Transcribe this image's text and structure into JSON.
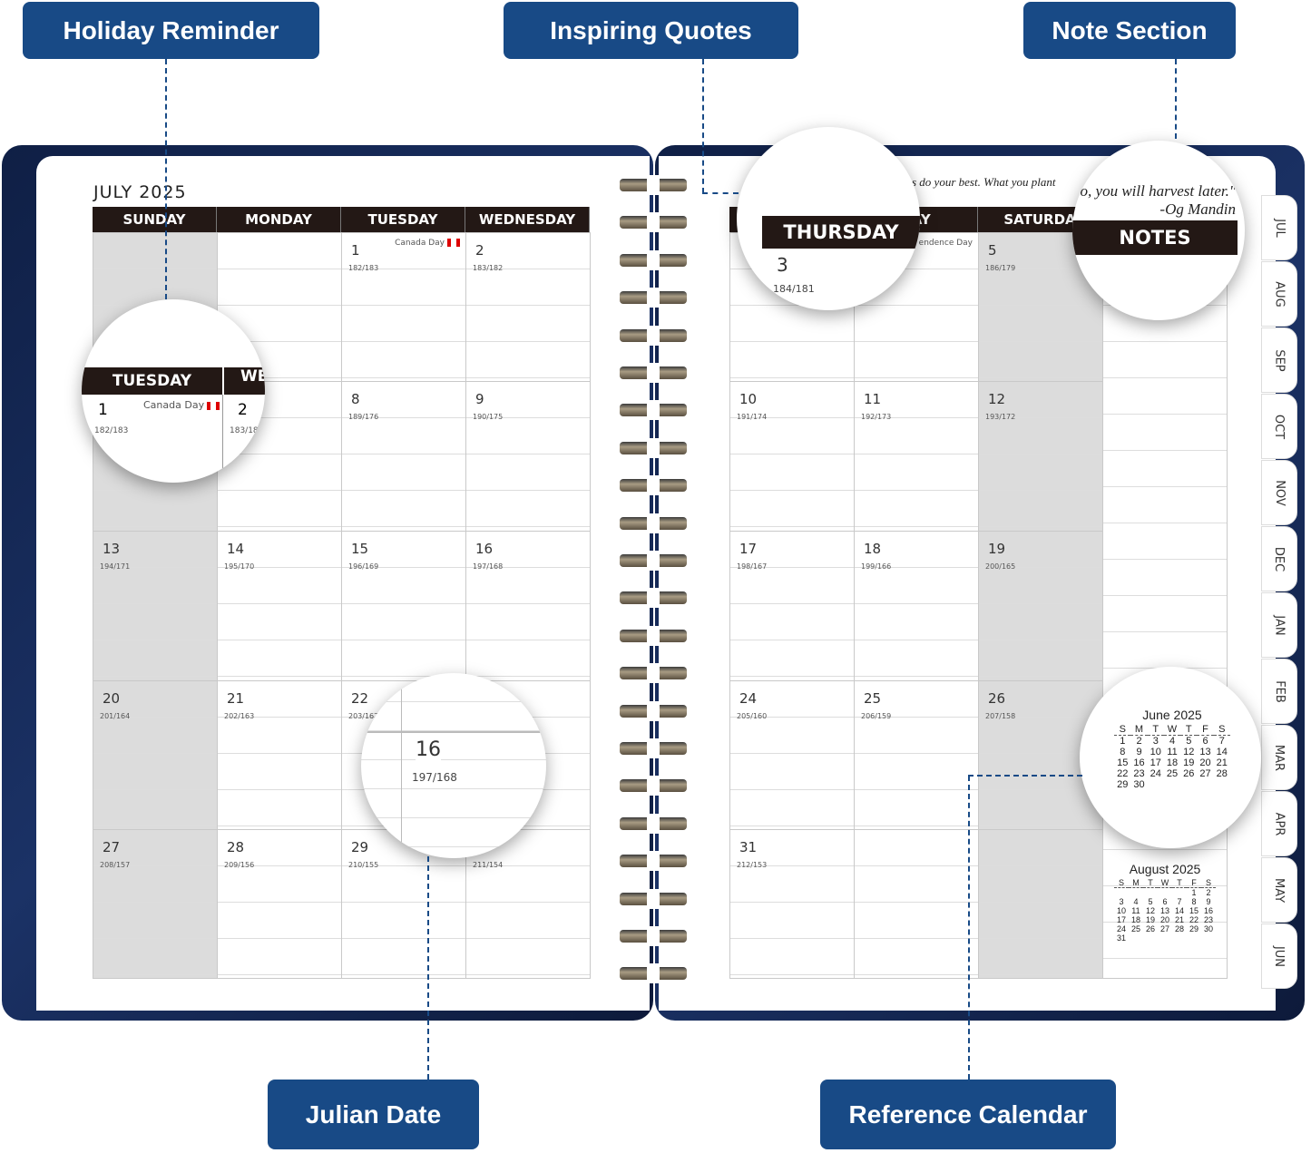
{
  "callouts": {
    "holiday": "Holiday Reminder",
    "quotes": "Inspiring Quotes",
    "notes": "Note Section",
    "julian": "Julian Date",
    "reference": "Reference Calendar"
  },
  "colors": {
    "callout": "#184a86",
    "header": "#231815",
    "weekend": "#dcdcdc",
    "cover": "#1b3266"
  },
  "left": {
    "month_title": "JULY 2025",
    "headers": [
      "SUNDAY",
      "MONDAY",
      "TUESDAY",
      "WEDNESDAY"
    ],
    "weeks": [
      [
        null,
        null,
        {
          "day": "1",
          "julian": "182/183",
          "holiday": "Canada Day"
        },
        {
          "day": "2",
          "julian": "183/182"
        }
      ],
      [
        null,
        null,
        {
          "day": "8",
          "julian": "189/176"
        },
        {
          "day": "9",
          "julian": "190/175"
        }
      ],
      [
        {
          "day": "13",
          "julian": "194/171"
        },
        {
          "day": "14",
          "julian": "195/170"
        },
        {
          "day": "15",
          "julian": "196/169"
        },
        {
          "day": "16",
          "julian": "197/168"
        }
      ],
      [
        {
          "day": "20",
          "julian": "201/164"
        },
        {
          "day": "21",
          "julian": "202/163"
        },
        {
          "day": "22",
          "julian": "203/162"
        },
        null
      ],
      [
        {
          "day": "27",
          "julian": "208/157"
        },
        {
          "day": "28",
          "julian": "209/156"
        },
        {
          "day": "29",
          "julian": "210/155"
        },
        {
          "day": "",
          "julian": "211/154"
        }
      ]
    ]
  },
  "right": {
    "headers": [
      "",
      "DAY",
      "SATURDA"
    ],
    "quote": "s do your best. What you plant",
    "weeks": [
      [
        null,
        {
          "day": "",
          "julian": "",
          "holiday": "endence Day"
        },
        {
          "day": "5",
          "julian": "186/179"
        }
      ],
      [
        {
          "day": "10",
          "julian": "191/174"
        },
        {
          "day": "11",
          "julian": "192/173"
        },
        {
          "day": "12",
          "julian": "193/172"
        }
      ],
      [
        {
          "day": "17",
          "julian": "198/167"
        },
        {
          "day": "18",
          "julian": "199/166"
        },
        {
          "day": "19",
          "julian": "200/165"
        }
      ],
      [
        {
          "day": "24",
          "julian": "205/160"
        },
        {
          "day": "25",
          "julian": "206/159"
        },
        {
          "day": "26",
          "julian": "207/158"
        }
      ],
      [
        {
          "day": "31",
          "julian": "212/153"
        },
        null,
        null
      ]
    ]
  },
  "mag_holiday": {
    "header1": "TUESDAY",
    "header2": "WE",
    "day": "1",
    "holiday": "Canada Day",
    "julian": "182/183",
    "day2": "2",
    "julian2": "183/18"
  },
  "mag_quote": {
    "header": "THURSDAY",
    "day": "3",
    "julian": "184/181"
  },
  "mag_notes": {
    "quote_line1": "o, you will harvest later.\"",
    "quote_line2": "-Og Mandin",
    "header": "NOTES"
  },
  "mag_julian": {
    "day": "16",
    "julian": "197/168"
  },
  "mini_june": {
    "title": "June 2025",
    "dow": [
      "S",
      "M",
      "T",
      "W",
      "T",
      "F",
      "S"
    ],
    "rows": [
      [
        "1",
        "2",
        "3",
        "4",
        "5",
        "6",
        "7"
      ],
      [
        "8",
        "9",
        "10",
        "11",
        "12",
        "13",
        "14"
      ],
      [
        "15",
        "16",
        "17",
        "18",
        "19",
        "20",
        "21"
      ],
      [
        "22",
        "23",
        "24",
        "25",
        "26",
        "27",
        "28"
      ],
      [
        "29",
        "30",
        "",
        "",
        "",
        "",
        ""
      ]
    ]
  },
  "mini_aug": {
    "title": "August 2025",
    "dow": [
      "S",
      "M",
      "T",
      "W",
      "T",
      "F",
      "S"
    ],
    "rows": [
      [
        "",
        "",
        "",
        "",
        "",
        "1",
        "2"
      ],
      [
        "3",
        "4",
        "5",
        "6",
        "7",
        "8",
        "9"
      ],
      [
        "10",
        "11",
        "12",
        "13",
        "14",
        "15",
        "16"
      ],
      [
        "17",
        "18",
        "19",
        "20",
        "21",
        "22",
        "23"
      ],
      [
        "24",
        "25",
        "26",
        "27",
        "28",
        "29",
        "30"
      ],
      [
        "31",
        "",
        "",
        "",
        "",
        "",
        ""
      ]
    ]
  },
  "tabs": [
    "JUL",
    "AUG",
    "SEP",
    "OCT",
    "NOV",
    "DEC",
    "JAN",
    "FEB",
    "MAR",
    "APR",
    "MAY",
    "JUN"
  ]
}
